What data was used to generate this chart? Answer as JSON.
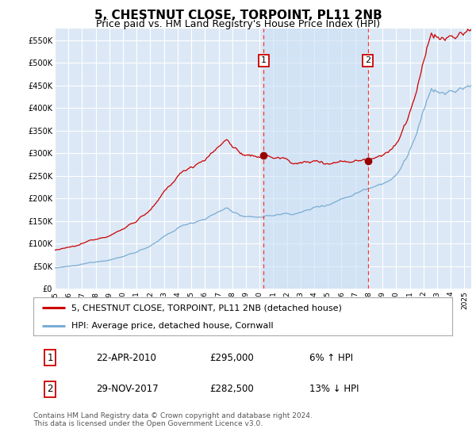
{
  "title": "5, CHESTNUT CLOSE, TORPOINT, PL11 2NB",
  "subtitle": "Price paid vs. HM Land Registry's House Price Index (HPI)",
  "ylim": [
    0,
    575000
  ],
  "yticks": [
    0,
    50000,
    100000,
    150000,
    200000,
    250000,
    300000,
    350000,
    400000,
    450000,
    500000,
    550000
  ],
  "ytick_labels": [
    "£0",
    "£50K",
    "£100K",
    "£150K",
    "£200K",
    "£250K",
    "£300K",
    "£350K",
    "£400K",
    "£450K",
    "£500K",
    "£550K"
  ],
  "xlim_start": 1995.0,
  "xlim_end": 2025.5,
  "xtick_years": [
    1995,
    1996,
    1997,
    1998,
    1999,
    2000,
    2001,
    2002,
    2003,
    2004,
    2005,
    2006,
    2007,
    2008,
    2009,
    2010,
    2011,
    2012,
    2013,
    2014,
    2015,
    2016,
    2017,
    2018,
    2019,
    2020,
    2021,
    2022,
    2023,
    2024,
    2025
  ],
  "background_color": "#ffffff",
  "plot_bg_color": "#dce8f5",
  "grid_color": "#ffffff",
  "hpi_line_color": "#7aadd4",
  "price_line_color": "#cc0000",
  "sale1_x": 2010.3,
  "sale1_y": 295000,
  "sale2_x": 2017.92,
  "sale2_y": 282500,
  "sale1_label": "1",
  "sale2_label": "2",
  "marker_color": "#990000",
  "vline_color": "#ff3333",
  "shade_color": "#ddeeff",
  "legend_label1": "5, CHESTNUT CLOSE, TORPOINT, PL11 2NB (detached house)",
  "legend_label2": "HPI: Average price, detached house, Cornwall",
  "table_row1": [
    "1",
    "22-APR-2010",
    "£295,000",
    "6% ↑ HPI"
  ],
  "table_row2": [
    "2",
    "29-NOV-2017",
    "£282,500",
    "13% ↓ HPI"
  ],
  "footer": "Contains HM Land Registry data © Crown copyright and database right 2024.\nThis data is licensed under the Open Government Licence v3.0.",
  "title_fontsize": 11,
  "subtitle_fontsize": 9,
  "tick_fontsize": 7
}
